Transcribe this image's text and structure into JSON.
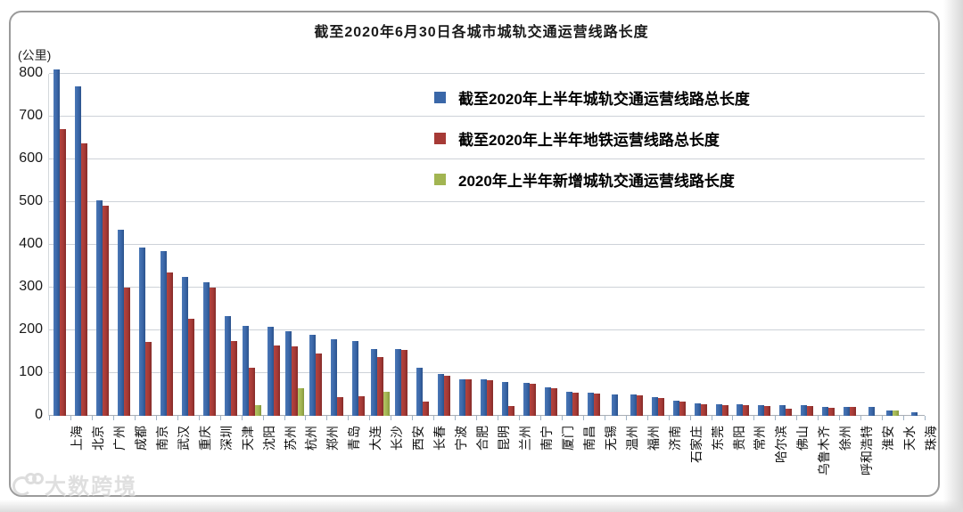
{
  "watermark": {
    "text": "大数跨境"
  },
  "chart_data": {
    "type": "bar",
    "title": "截至2020年6月30日各城市城轨交通运营线路长度",
    "unit_label": "(公里)",
    "xlabel": "",
    "ylabel": "公里",
    "ylim": [
      0,
      800
    ],
    "yticks": [
      0,
      100,
      200,
      300,
      400,
      500,
      600,
      700,
      800
    ],
    "grid": true,
    "legend_position": "inside-top-center",
    "categories": [
      "上海",
      "北京",
      "广州",
      "成都",
      "南京",
      "武汉",
      "重庆",
      "深圳",
      "天津",
      "沈阳",
      "苏州",
      "杭州",
      "郑州",
      "青岛",
      "大连",
      "长沙",
      "西安",
      "长春",
      "宁波",
      "合肥",
      "昆明",
      "兰州",
      "南宁",
      "厦门",
      "南昌",
      "无锡",
      "温州",
      "福州",
      "济南",
      "石家庄",
      "东莞",
      "贵阳",
      "常州",
      "哈尔滨",
      "佛山",
      "乌鲁木齐",
      "徐州",
      "呼和浩特",
      "淮安",
      "天水",
      "珠海"
    ],
    "series": [
      {
        "name": "截至2020年上半年城轨交通运营线路总长度",
        "color": "#3a67a8",
        "values": [
          810,
          770,
          505,
          435,
          394,
          385,
          326,
          313,
          234,
          210,
          209,
          199,
          190,
          180,
          176,
          157,
          156,
          113,
          97,
          86,
          85,
          80,
          77,
          67,
          56,
          55,
          51,
          50,
          43,
          35,
          29,
          28,
          27,
          25,
          25,
          25,
          20,
          21,
          20,
          13,
          9
        ]
      },
      {
        "name": "截至2020年上半年地铁运营线路总长度",
        "color": "#a63a36",
        "values": [
          670,
          637,
          491,
          300,
          172,
          335,
          227,
          300,
          175,
          113,
          164,
          162,
          146,
          44,
          46,
          138,
          154,
          33,
          93,
          85,
          84,
          24,
          75,
          65,
          54,
          53,
          0,
          49,
          42,
          33,
          27,
          26,
          25,
          24,
          17,
          24,
          18,
          20,
          0,
          0,
          0
        ]
      },
      {
        "name": "2020年上半年新增城轨交通运营线路长度",
        "color": "#a2b552",
        "values": [
          0,
          0,
          0,
          0,
          0,
          0,
          0,
          0,
          0,
          26,
          0,
          65,
          0,
          0,
          0,
          56,
          0,
          0,
          0,
          0,
          0,
          0,
          0,
          0,
          0,
          0,
          0,
          0,
          0,
          0,
          0,
          0,
          0,
          0,
          0,
          0,
          0,
          0,
          0,
          13,
          0
        ]
      }
    ]
  }
}
